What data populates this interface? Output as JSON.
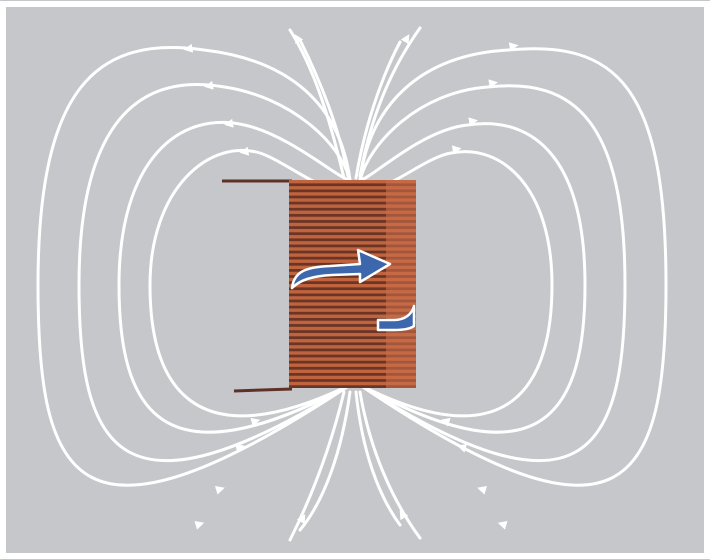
{
  "diagram": {
    "subject": "magnetic-field-of-solenoid",
    "colors": {
      "background": "#c6c7cb",
      "frame": "#ffffff",
      "field_lines": "#ffffff",
      "coil_light": "#c0643f",
      "coil_dark": "#6b3526",
      "lead_wire": "#5e3127",
      "current_arrow": "#3d67ad",
      "current_arrow_outline": "#ffffff"
    },
    "icons": [
      "field-line-arrow-icon",
      "current-direction-arrow-icon"
    ],
    "coil": {
      "turns": 34
    },
    "field_lines": {
      "loops_per_side": 4,
      "open_lines_per_side": 2
    }
  }
}
